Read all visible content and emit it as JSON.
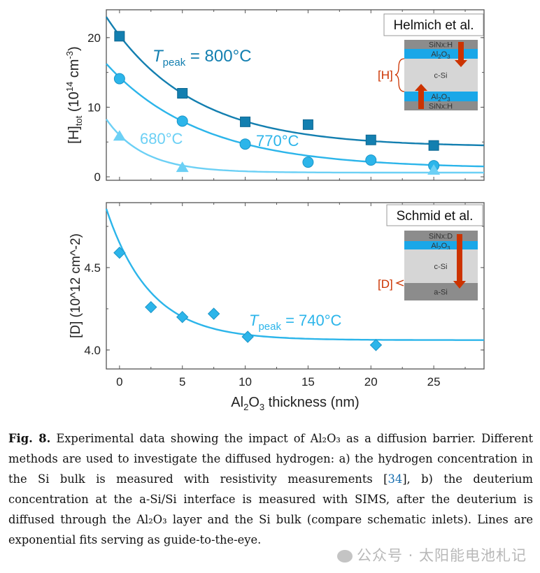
{
  "chart_data": [
    {
      "type": "scatter",
      "panel": "a",
      "ylabel": "[H]tot (10^14 cm^-3)",
      "ylabel_parts": {
        "main": "[H]",
        "sub": "tot",
        "unit_pre": " (10",
        "sup1": "14",
        "unit_mid": " cm",
        "sup2": "-3",
        "unit_post": ")"
      },
      "xlim": [
        -1.05,
        29
      ],
      "ylim": [
        -0.5,
        24
      ],
      "yticks": [
        0,
        10,
        20
      ],
      "xticks": [
        0,
        5,
        10,
        15,
        20,
        25
      ],
      "legend_box": "Helmich et al.",
      "series": [
        {
          "name": "Tpeak = 800°C",
          "label_prefix": "T",
          "label_sub": "peak",
          "label_rest": " = 800°C",
          "marker": "square",
          "color": "#137fb0",
          "x": [
            0,
            5,
            10,
            15,
            20,
            25
          ],
          "y": [
            20.2,
            12.0,
            7.9,
            7.5,
            5.3,
            4.5
          ],
          "fit": {
            "a": 4.3,
            "b": 16.0,
            "tau": 6.8
          }
        },
        {
          "name": "770°C",
          "label_rest": "770°C",
          "marker": "circle",
          "color": "#2cb5ea",
          "x": [
            0,
            5,
            10,
            15,
            20,
            25
          ],
          "y": [
            14.1,
            8.0,
            4.7,
            2.1,
            2.4,
            1.6
          ],
          "fit": {
            "a": 1.2,
            "b": 13.1,
            "tau": 7.6
          }
        },
        {
          "name": "680°C",
          "label_rest": "680°C",
          "marker": "triangle",
          "color": "#6cd0f5",
          "x": [
            0,
            5,
            25
          ],
          "y": [
            5.8,
            1.3,
            0.9
          ],
          "fit": {
            "a": 0.6,
            "b": 5.4,
            "tau": 3.0
          }
        }
      ],
      "inset": {
        "layers": [
          "SiNx:H",
          "Al2O3",
          "c-Si",
          "Al2O3",
          "SiNx:H"
        ],
        "label": "[H]"
      }
    },
    {
      "type": "scatter",
      "panel": "b",
      "ylabel": "[D] (10^12 cm^-2)",
      "ylabel_parts": {
        "main": "[D]",
        "unit_pre": " (10",
        "sup1": "12",
        "unit_mid": " cm",
        "sup2": "-2",
        "unit_post": ")"
      },
      "xlabel": "Al2O3 thickness (nm)",
      "xlabel_parts": {
        "a": "Al",
        "s1": "2",
        "b": "O",
        "s2": "3",
        "c": " thickness (nm)"
      },
      "xlim": [
        -1.05,
        29
      ],
      "ylim": [
        3.885,
        4.894
      ],
      "yticks": [
        4.0,
        4.5
      ],
      "ytick_labels": [
        "4.0",
        "4.5"
      ],
      "xticks": [
        0,
        5,
        10,
        15,
        20,
        25
      ],
      "legend_box": "Schmid et al.",
      "series": [
        {
          "name": "Tpeak = 740°C",
          "label_prefix": "T",
          "label_sub": "peak",
          "label_rest": " = 740°C",
          "marker": "diamond",
          "color": "#2cb5ea",
          "x": [
            0,
            2.5,
            5,
            7.5,
            10.2,
            20.4
          ],
          "y": [
            4.59,
            4.26,
            4.2,
            4.22,
            4.08,
            4.03
          ],
          "fit": {
            "a": 4.06,
            "b": 0.59,
            "tau": 3.5
          }
        }
      ],
      "inset": {
        "layers": [
          "SiNx:D",
          "Al2O3",
          "c-Si",
          "a-Si"
        ],
        "label": "[D]"
      }
    }
  ],
  "caption": {
    "fig_label": "Fig. 8.",
    "text_1": " Experimental data showing the impact of Al₂O₃ as a diffusion barrier. Different methods are used to investigate the diffused hydrogen: a) the hydrogen concentration in the Si bulk is measured with resistivity measurements [",
    "ref": "34",
    "text_2": "], b) the deuterium concentration at the a-Si/Si interface is measured with SIMS, after the deuterium is diffused through the Al₂O₃ layer and the Si bulk (compare schematic inlets). Lines are exponential fits serving as guide-to-the-eye."
  },
  "watermark": "公众号 · 太阳能电池札记",
  "colors": {
    "axis": "#555555",
    "grid_text": "#222222",
    "sinx": "#8c8c8c",
    "al2o3": "#1aa7e8",
    "csi": "#d6d6d6",
    "asi": "#8c8c8c",
    "arrow": "#cc3300"
  }
}
